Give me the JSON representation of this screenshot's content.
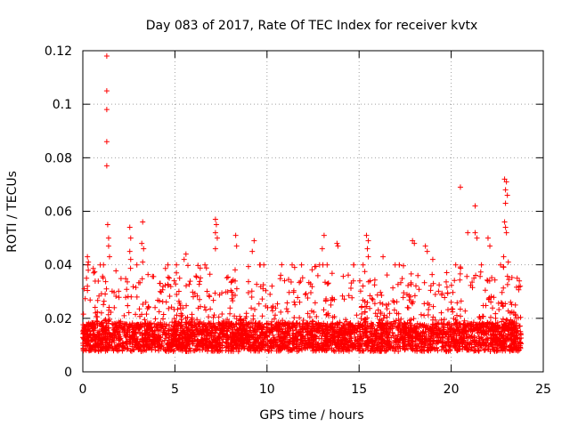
{
  "chart_data": {
    "type": "scatter",
    "title": "Day 083 of 2017, Rate Of TEC Index for receiver kvtx",
    "xlabel": "GPS time / hours",
    "ylabel": "ROTI / TECUs",
    "xlim": [
      0,
      25
    ],
    "ylim": [
      0,
      0.12
    ],
    "xticks": [
      0,
      5,
      10,
      15,
      20,
      25
    ],
    "xtick_labels": [
      "0",
      "5",
      "10",
      "15",
      "20",
      "25"
    ],
    "yticks": [
      0,
      0.02,
      0.04,
      0.06,
      0.08,
      0.1,
      0.12
    ],
    "ytick_labels": [
      "0",
      "0.02",
      "0.04",
      "0.06",
      "0.08",
      "0.1",
      "0.12"
    ],
    "grid": true,
    "marker": "+",
    "color": "#ff0000",
    "series": [
      {
        "name": "ROTI",
        "points": [
          [
            1.3,
            0.118
          ],
          [
            1.3,
            0.105
          ],
          [
            1.3,
            0.098
          ],
          [
            1.3,
            0.086
          ],
          [
            1.3,
            0.077
          ],
          [
            1.35,
            0.055
          ],
          [
            1.4,
            0.05
          ],
          [
            1.4,
            0.047
          ],
          [
            1.45,
            0.043
          ],
          [
            0.25,
            0.043
          ],
          [
            0.3,
            0.041
          ],
          [
            0.2,
            0.035
          ],
          [
            0.25,
            0.032
          ],
          [
            2.55,
            0.054
          ],
          [
            2.6,
            0.05
          ],
          [
            2.55,
            0.045
          ],
          [
            2.6,
            0.042
          ],
          [
            3.25,
            0.056
          ],
          [
            3.2,
            0.048
          ],
          [
            3.3,
            0.046
          ],
          [
            3.25,
            0.041
          ],
          [
            5.6,
            0.044
          ],
          [
            5.5,
            0.042
          ],
          [
            7.2,
            0.057
          ],
          [
            7.25,
            0.055
          ],
          [
            7.2,
            0.052
          ],
          [
            7.3,
            0.05
          ],
          [
            7.2,
            0.046
          ],
          [
            8.3,
            0.051
          ],
          [
            8.35,
            0.047
          ],
          [
            9.3,
            0.049
          ],
          [
            9.2,
            0.045
          ],
          [
            10.8,
            0.04
          ],
          [
            11.5,
            0.039
          ],
          [
            13.1,
            0.051
          ],
          [
            13.0,
            0.046
          ],
          [
            13.8,
            0.048
          ],
          [
            13.85,
            0.047
          ],
          [
            15.4,
            0.051
          ],
          [
            15.5,
            0.049
          ],
          [
            15.45,
            0.046
          ],
          [
            15.5,
            0.043
          ],
          [
            16.3,
            0.043
          ],
          [
            17.9,
            0.049
          ],
          [
            18.0,
            0.048
          ],
          [
            18.6,
            0.047
          ],
          [
            18.7,
            0.045
          ],
          [
            19.0,
            0.042
          ],
          [
            20.5,
            0.069
          ],
          [
            21.3,
            0.062
          ],
          [
            20.9,
            0.052
          ],
          [
            21.3,
            0.052
          ],
          [
            21.4,
            0.05
          ],
          [
            22.9,
            0.072
          ],
          [
            23.0,
            0.071
          ],
          [
            22.95,
            0.068
          ],
          [
            23.05,
            0.066
          ],
          [
            22.95,
            0.063
          ],
          [
            22.9,
            0.056
          ],
          [
            22.95,
            0.054
          ],
          [
            23.0,
            0.052
          ],
          [
            22.0,
            0.05
          ],
          [
            22.1,
            0.047
          ],
          [
            22.85,
            0.043
          ],
          [
            23.1,
            0.041
          ],
          [
            23.7,
            0.034
          ],
          [
            23.75,
            0.032
          ]
        ],
        "dense_band": {
          "x_range": [
            0,
            23.8
          ],
          "y_range": [
            0.004,
            0.04
          ],
          "typical_y": 0.013,
          "points": 9000
        }
      }
    ]
  }
}
